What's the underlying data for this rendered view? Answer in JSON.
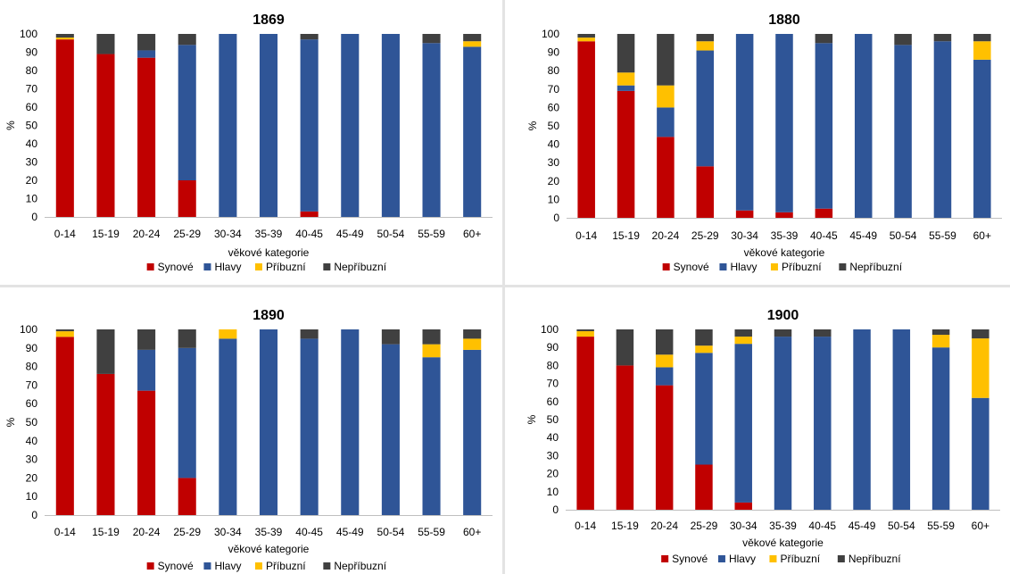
{
  "colors": {
    "Synové": "#c00000",
    "Hlavy": "#2f5597",
    "Příbuzní": "#ffc000",
    "Nepříbuzní": "#404040",
    "grid": "#d9d9d9",
    "axis": "#bfbfbf"
  },
  "chart_data": [
    {
      "type": "bar",
      "stacked": true,
      "title": "1869",
      "xlabel": "věkové kategorie",
      "ylabel": "%",
      "ylim": [
        0,
        100
      ],
      "yticks": [
        0,
        10,
        20,
        30,
        40,
        50,
        60,
        70,
        80,
        90,
        100
      ],
      "grid": false,
      "legend": "bottom",
      "categories": [
        "0-14",
        "15-19",
        "20-24",
        "25-29",
        "30-34",
        "35-39",
        "40-45",
        "45-49",
        "50-54",
        "55-59",
        "60+"
      ],
      "series": [
        {
          "name": "Synové",
          "values": [
            97,
            89,
            87,
            20,
            0,
            0,
            3,
            0,
            0,
            0,
            0
          ]
        },
        {
          "name": "Hlavy",
          "values": [
            0,
            0,
            4,
            74,
            100,
            100,
            94,
            100,
            100,
            95,
            93
          ]
        },
        {
          "name": "Příbuzní",
          "values": [
            1,
            0,
            0,
            0,
            0,
            0,
            0,
            0,
            0,
            0,
            3
          ]
        },
        {
          "name": "Nepříbuzní",
          "values": [
            2,
            11,
            9,
            6,
            0,
            0,
            3,
            0,
            0,
            5,
            4
          ]
        }
      ]
    },
    {
      "type": "bar",
      "stacked": true,
      "title": "1880",
      "xlabel": "věkové kategorie",
      "ylabel": "%",
      "ylim": [
        0,
        100
      ],
      "yticks": [
        0,
        10,
        20,
        30,
        40,
        50,
        60,
        70,
        80,
        90,
        100
      ],
      "grid": false,
      "legend": "bottom",
      "categories": [
        "0-14",
        "15-19",
        "20-24",
        "25-29",
        "30-34",
        "35-39",
        "40-45",
        "45-49",
        "50-54",
        "55-59",
        "60+"
      ],
      "series": [
        {
          "name": "Synové",
          "values": [
            96,
            69,
            44,
            28,
            4,
            3,
            5,
            0,
            0,
            0,
            0
          ]
        },
        {
          "name": "Hlavy",
          "values": [
            0,
            3,
            16,
            63,
            96,
            97,
            90,
            100,
            94,
            96,
            86
          ]
        },
        {
          "name": "Příbuzní",
          "values": [
            2,
            7,
            12,
            5,
            0,
            0,
            0,
            0,
            0,
            0,
            10
          ]
        },
        {
          "name": "Nepříbuzní",
          "values": [
            2,
            21,
            28,
            4,
            0,
            0,
            5,
            0,
            6,
            4,
            4
          ]
        }
      ]
    },
    {
      "type": "bar",
      "stacked": true,
      "title": "1890",
      "xlabel": "věkové kategorie",
      "ylabel": "%",
      "ylim": [
        0,
        100
      ],
      "yticks": [
        0,
        10,
        20,
        30,
        40,
        50,
        60,
        70,
        80,
        90,
        100
      ],
      "grid": false,
      "legend": "bottom",
      "categories": [
        "0-14",
        "15-19",
        "20-24",
        "25-29",
        "30-34",
        "35-39",
        "40-45",
        "45-49",
        "50-54",
        "55-59",
        "60+"
      ],
      "series": [
        {
          "name": "Synové",
          "values": [
            96,
            76,
            67,
            20,
            0,
            0,
            0,
            0,
            0,
            0,
            0
          ]
        },
        {
          "name": "Hlavy",
          "values": [
            0,
            0,
            22,
            70,
            95,
            100,
            95,
            100,
            92,
            85,
            89
          ]
        },
        {
          "name": "Příbuzní",
          "values": [
            3,
            0,
            0,
            0,
            5,
            0,
            0,
            0,
            0,
            7,
            6
          ]
        },
        {
          "name": "Nepříbuzní",
          "values": [
            1,
            24,
            11,
            10,
            0,
            0,
            5,
            0,
            8,
            8,
            5
          ]
        }
      ]
    },
    {
      "type": "bar",
      "stacked": true,
      "title": "1900",
      "xlabel": "věkové kategorie",
      "ylabel": "%",
      "ylim": [
        0,
        100
      ],
      "yticks": [
        0,
        10,
        20,
        30,
        40,
        50,
        60,
        70,
        80,
        90,
        100
      ],
      "grid": false,
      "legend": "bottom",
      "categories": [
        "0-14",
        "15-19",
        "20-24",
        "25-29",
        "30-34",
        "35-39",
        "40-45",
        "45-49",
        "50-54",
        "55-59",
        "60+"
      ],
      "series": [
        {
          "name": "Synové",
          "values": [
            96,
            80,
            69,
            25,
            4,
            0,
            0,
            0,
            0,
            0,
            0
          ]
        },
        {
          "name": "Hlavy",
          "values": [
            0,
            0,
            10,
            62,
            88,
            96,
            96,
            100,
            100,
            90,
            62
          ]
        },
        {
          "name": "Příbuzní",
          "values": [
            3,
            0,
            7,
            4,
            4,
            0,
            0,
            0,
            0,
            7,
            33
          ]
        },
        {
          "name": "Nepříbuzní",
          "values": [
            1,
            20,
            14,
            9,
            4,
            4,
            4,
            0,
            0,
            3,
            5
          ]
        }
      ]
    }
  ]
}
